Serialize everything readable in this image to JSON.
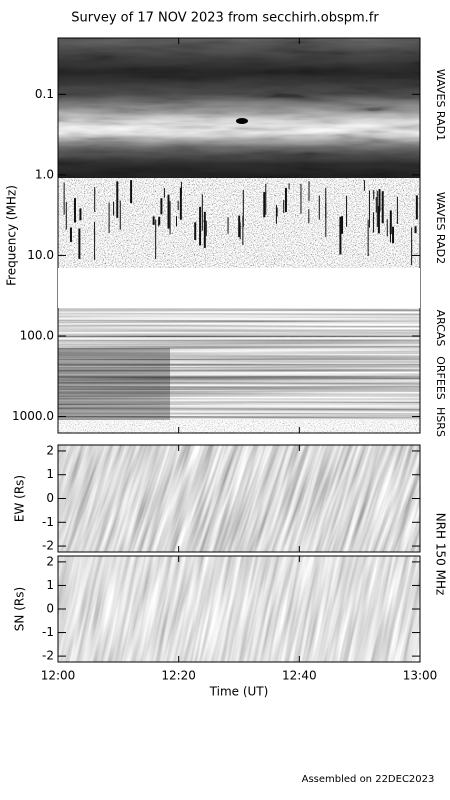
{
  "title": "Survey of 17 NOV 2023 from secchirh.obspm.fr",
  "footer": "Assembled on 22DEC2023",
  "chart_data": [
    {
      "type": "spectrogram",
      "ylabel": "Frequency (MHz)",
      "log_scale": true,
      "invert_y": true,
      "ylim": [
        0.02,
        1600
      ],
      "yticks": [
        {
          "value": 0.1,
          "label": "0.1"
        },
        {
          "value": 1,
          "label": "1.0"
        },
        {
          "value": 10,
          "label": "10.0"
        },
        {
          "value": 100,
          "label": "100.0"
        },
        {
          "value": 1000,
          "label": "1000.0"
        }
      ],
      "annotations": [
        "WAVES RAD1",
        "WAVES RAD2",
        "ARCAS",
        "ORFEES",
        "HSRS"
      ]
    },
    {
      "type": "spectrogram",
      "ylabel": "EW (Rs)",
      "ylim": [
        -2.25,
        2.25
      ],
      "yticks": [
        -2,
        -1,
        0,
        1,
        2
      ],
      "annotation": "NRH 150 MHz"
    },
    {
      "type": "spectrogram",
      "ylabel": "SN (Rs)",
      "ylim": [
        -2.25,
        2.25
      ],
      "yticks": [
        -2,
        -1,
        0,
        1,
        2
      ],
      "xticks": [
        "12:00",
        "12:20",
        "12:40",
        "13:00"
      ],
      "xlabel": "Time (UT)"
    }
  ]
}
